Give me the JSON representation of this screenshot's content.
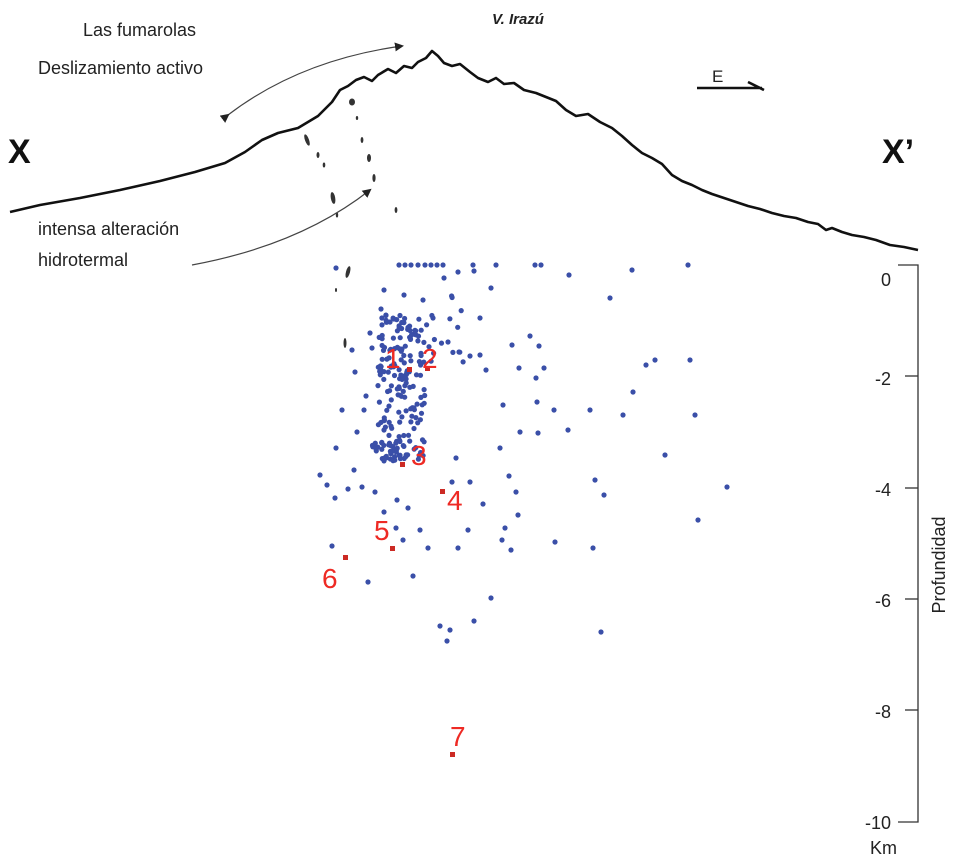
{
  "volcano_label": "V. Irazú",
  "profile_start": "X",
  "profile_end": "X’",
  "direction": "E",
  "annotations": {
    "fumarolas": "Las fumarolas",
    "deslizamiento": "Deslizamiento activo",
    "alteracion_1": "intensa alteración",
    "alteracion_2": "hidrotermal"
  },
  "axis": {
    "title": "Profundidad",
    "unit": "Km",
    "ticks": [
      "0",
      "-2",
      "-4",
      "-6",
      "-8",
      "-10"
    ]
  },
  "colors": {
    "seismicity": "#3a4fa8",
    "markers": "#ee2a24",
    "topography": "#111111"
  },
  "markers": [
    {
      "label": "1",
      "depth": -1.8
    },
    {
      "label": "2",
      "depth": -1.8
    },
    {
      "label": "3",
      "depth": -3.6
    },
    {
      "label": "4",
      "depth": -4.1
    },
    {
      "label": "5",
      "depth": -5.1
    },
    {
      "label": "6",
      "depth": -5.3
    },
    {
      "label": "7",
      "depth": -8.8
    }
  ]
}
